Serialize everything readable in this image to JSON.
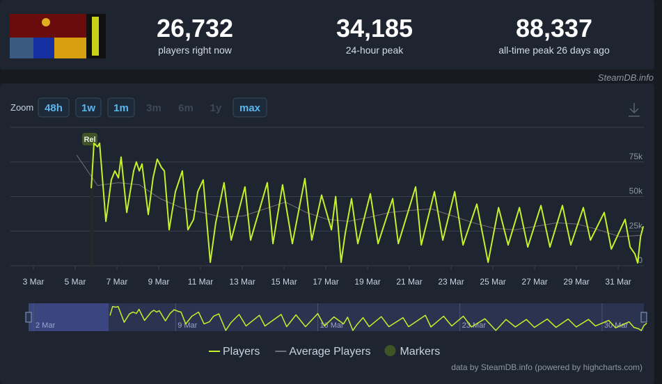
{
  "header": {
    "stats": [
      {
        "value": "26,732",
        "label": "players right now"
      },
      {
        "value": "34,185",
        "label": "24-hour peak"
      },
      {
        "value": "88,337",
        "label": "all-time peak 26 days ago"
      }
    ],
    "brand": "SteamDB.info"
  },
  "zoom": {
    "label": "Zoom",
    "buttons": [
      {
        "text": "48h",
        "enabled": true
      },
      {
        "text": "1w",
        "enabled": true
      },
      {
        "text": "1m",
        "enabled": true
      },
      {
        "text": "3m",
        "enabled": false
      },
      {
        "text": "6m",
        "enabled": false
      },
      {
        "text": "1y",
        "enabled": false
      },
      {
        "text": "max",
        "enabled": true
      }
    ]
  },
  "chart_data": {
    "type": "line",
    "xlim": [
      1.9,
      32.23
    ],
    "xticks": [
      {
        "value": 3,
        "label": "3 Mar"
      },
      {
        "value": 5,
        "label": "5 Mar"
      },
      {
        "value": 7,
        "label": "7 Mar"
      },
      {
        "value": 9,
        "label": "9 Mar"
      },
      {
        "value": 11,
        "label": "11 Mar"
      },
      {
        "value": 13,
        "label": "13 Mar"
      },
      {
        "value": 15,
        "label": "15 Mar"
      },
      {
        "value": 17,
        "label": "17 Mar"
      },
      {
        "value": 19,
        "label": "19 Mar"
      },
      {
        "value": 21,
        "label": "21 Mar"
      },
      {
        "value": 23,
        "label": "23 Mar"
      },
      {
        "value": 25,
        "label": "25 Mar"
      },
      {
        "value": 27,
        "label": "27 Mar"
      },
      {
        "value": 29,
        "label": "29 Mar"
      },
      {
        "value": 31,
        "label": "31 Mar"
      }
    ],
    "ylim": [
      0,
      100000
    ],
    "yticks": [
      0,
      {
        "value": 25000,
        "label": "25k"
      },
      {
        "value": 50000,
        "label": "50k"
      },
      {
        "value": 75000,
        "label": "75k"
      }
    ],
    "grid": true,
    "series": [
      {
        "name": "Players",
        "color": "#c6f02b",
        "x": [
          5.77,
          5.9,
          6.07,
          6.17,
          6.47,
          6.73,
          6.9,
          7.07,
          7.2,
          7.47,
          7.8,
          7.93,
          8.07,
          8.2,
          8.5,
          8.73,
          8.93,
          9.13,
          9.27,
          9.5,
          9.8,
          10.13,
          10.4,
          10.67,
          10.87,
          11.13,
          11.47,
          11.73,
          12.13,
          12.47,
          13.13,
          13.4,
          14.2,
          14.47,
          14.93,
          15.4,
          16.0,
          16.33,
          16.8,
          17.27,
          17.47,
          17.73,
          17.93,
          18.23,
          18.53,
          19.13,
          19.5,
          20.2,
          20.47,
          21.3,
          21.57,
          22.2,
          22.6,
          23.17,
          23.57,
          24.23,
          24.77,
          25.27,
          25.73,
          26.27,
          26.67,
          27.3,
          27.73,
          28.33,
          28.73,
          29.33,
          29.67,
          30.33,
          30.67,
          31.33,
          31.57,
          31.8,
          31.93,
          32.07,
          32.2
        ],
        "values": [
          56000,
          88500,
          86000,
          88500,
          32000,
          62000,
          68500,
          63500,
          78500,
          38500,
          68500,
          75000,
          68500,
          73500,
          37000,
          63500,
          77000,
          71000,
          68500,
          26000,
          53500,
          68500,
          26000,
          33500,
          53500,
          62000,
          2500,
          31000,
          60000,
          18500,
          57000,
          18500,
          60000,
          16000,
          58500,
          16000,
          63000,
          18500,
          51000,
          26000,
          50000,
          2500,
          23500,
          48500,
          16000,
          52000,
          16000,
          48500,
          16000,
          57000,
          15000,
          53500,
          18500,
          53500,
          15000,
          44500,
          2500,
          42000,
          15000,
          42000,
          13500,
          43500,
          13500,
          43500,
          15000,
          42000,
          18500,
          38500,
          12000,
          33500,
          13500,
          8500,
          2000,
          21000,
          28500
        ]
      },
      {
        "name": "Average Players",
        "color": "#6c7077",
        "x": [
          5.07,
          6.07,
          7.07,
          8.07,
          9.07,
          10.07,
          11.07,
          12.07,
          13.07,
          14.07,
          15.07,
          16.07,
          17.07,
          18.07,
          19.07,
          20.07,
          21.07,
          22.07,
          23.07,
          24.07,
          25.07,
          26.07,
          27.07,
          28.07,
          29.07,
          30.07,
          31.07,
          32.07
        ],
        "values": [
          80000,
          58000,
          60000,
          58500,
          48500,
          42000,
          38500,
          35000,
          36000,
          41000,
          46000,
          38500,
          33500,
          32000,
          35000,
          38500,
          40000,
          41000,
          36000,
          31000,
          27000,
          26000,
          28500,
          31000,
          30000,
          26000,
          21000,
          22000
        ]
      }
    ],
    "markers": {
      "name": "Markers",
      "color": "#3f5427",
      "points": [
        {
          "x": 5.7,
          "label": "Rel"
        }
      ]
    },
    "navigator": {
      "xlim": [
        1.76,
        32.06
      ],
      "xticks": [
        {
          "value": 2,
          "label": "2 Mar"
        },
        {
          "value": 9,
          "label": "9 Mar"
        },
        {
          "value": 16,
          "label": "16 Mar"
        },
        {
          "value": 23,
          "label": "23 Mar"
        },
        {
          "value": 30,
          "label": "30 Mar"
        }
      ]
    },
    "credit": "data by SteamDB.info (powered by highcharts.com)"
  }
}
